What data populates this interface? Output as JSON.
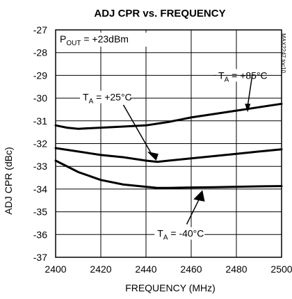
{
  "chart_data": {
    "type": "line",
    "title": "ADJ CPR vs. FREQUENCY",
    "xlabel": "FREQUENCY (MHz)",
    "ylabel": "ADJ CPR (dBc)",
    "xlim": [
      2400,
      2500
    ],
    "ylim": [
      -37,
      -27
    ],
    "x_ticks": [
      2400,
      2420,
      2440,
      2460,
      2480,
      2500
    ],
    "y_ticks": [
      -27,
      -28,
      -29,
      -30,
      -31,
      -32,
      -33,
      -34,
      -35,
      -36,
      -37
    ],
    "grid": true,
    "condition": {
      "main": "P",
      "sub": "OUT",
      "rest": " = +23dBm"
    },
    "side_label": "MAX2247 toc10",
    "series": [
      {
        "name": "TA = +85°C",
        "label_main": "T",
        "label_sub": "A",
        "label_rest": " = +85°C",
        "x": [
          2400,
          2405,
          2410,
          2420,
          2430,
          2440,
          2450,
          2460,
          2470,
          2480,
          2490,
          2500
        ],
        "y": [
          -31.2,
          -31.3,
          -31.35,
          -31.3,
          -31.25,
          -31.2,
          -31.05,
          -30.85,
          -30.7,
          -30.55,
          -30.4,
          -30.25
        ]
      },
      {
        "name": "TA = +25°C",
        "label_main": "T",
        "label_sub": "A",
        "label_rest": " = +25°C",
        "x": [
          2400,
          2410,
          2420,
          2430,
          2440,
          2445,
          2450,
          2460,
          2470,
          2480,
          2490,
          2500
        ],
        "y": [
          -32.2,
          -32.35,
          -32.5,
          -32.6,
          -32.75,
          -32.8,
          -32.75,
          -32.65,
          -32.55,
          -32.45,
          -32.35,
          -32.25
        ]
      },
      {
        "name": "TA = -40°C",
        "label_main": "T",
        "label_sub": "A",
        "label_rest": " = -40°C",
        "x": [
          2400,
          2410,
          2420,
          2430,
          2440,
          2445,
          2450,
          2460,
          2470,
          2480,
          2490,
          2500
        ],
        "y": [
          -32.75,
          -33.25,
          -33.6,
          -33.8,
          -33.9,
          -33.95,
          -33.95,
          -33.93,
          -33.92,
          -33.9,
          -33.88,
          -33.87
        ]
      }
    ]
  }
}
